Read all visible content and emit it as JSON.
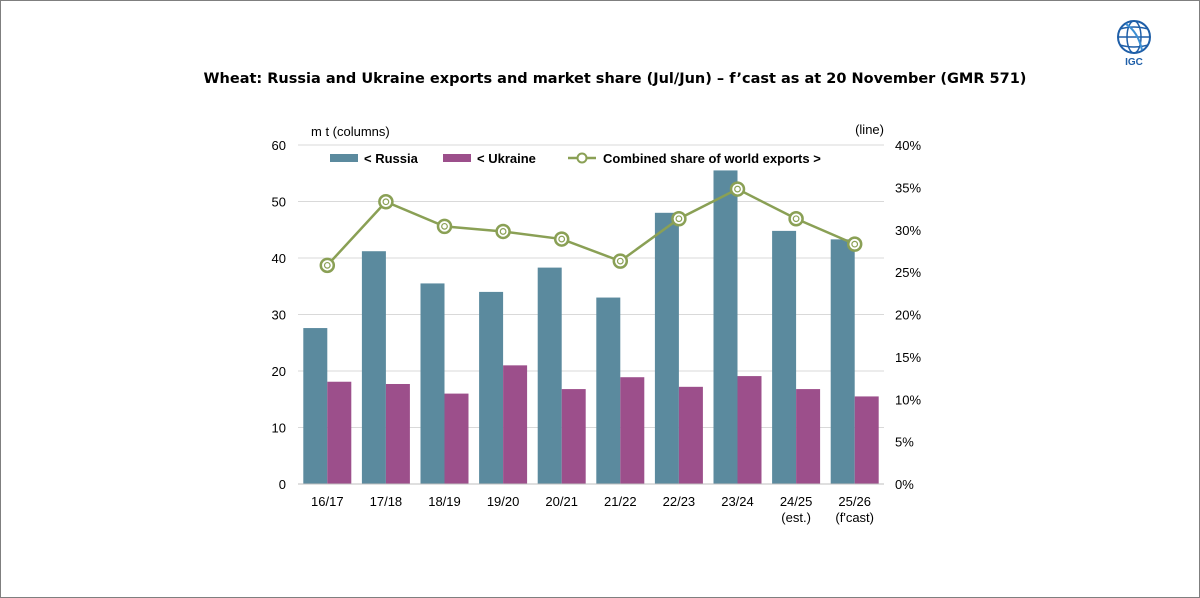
{
  "chart_data": {
    "type": "bar",
    "title": "Wheat: Russia and Ukraine exports and market share (Jul/Jun) – f’cast as at 20 November (GMR 571)",
    "ylabel_left": "m t (columns)",
    "ylabel_right": "(line)",
    "ylim_left": [
      0,
      60
    ],
    "yticks_left": [
      "0",
      "10",
      "20",
      "30",
      "40",
      "50",
      "60"
    ],
    "ylim_right": [
      0,
      40
    ],
    "yticks_right": [
      "0%",
      "5%",
      "10%",
      "15%",
      "20%",
      "25%",
      "30%",
      "35%",
      "40%"
    ],
    "categories": [
      [
        "16/17"
      ],
      [
        "17/18"
      ],
      [
        "18/19"
      ],
      [
        "19/20"
      ],
      [
        "20/21"
      ],
      [
        "21/22"
      ],
      [
        "22/23"
      ],
      [
        "23/24"
      ],
      [
        "24/25",
        "(est.)"
      ],
      [
        "25/26",
        "(f'cast)"
      ]
    ],
    "series": [
      {
        "name": "< Russia",
        "kind": "bar",
        "axis": "left",
        "color": "#5b8a9e",
        "values": [
          27.6,
          41.2,
          35.5,
          34.0,
          38.3,
          33.0,
          48.0,
          55.5,
          44.8,
          43.3
        ]
      },
      {
        "name": "< Ukraine",
        "kind": "bar",
        "axis": "left",
        "color": "#9c4f8b",
        "values": [
          18.1,
          17.7,
          16.0,
          21.0,
          16.8,
          18.9,
          17.2,
          19.1,
          16.8,
          15.5
        ]
      },
      {
        "name": "Combined share of world exports >",
        "kind": "line",
        "axis": "right",
        "color": "#8aa055",
        "values": [
          25.8,
          33.3,
          30.4,
          29.8,
          28.9,
          26.3,
          31.3,
          34.8,
          31.3,
          28.3
        ]
      }
    ],
    "legend": "top"
  },
  "logo": {
    "text": "IGC"
  }
}
